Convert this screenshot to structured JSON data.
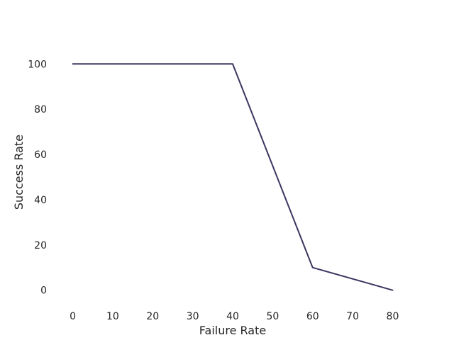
{
  "chart_data": {
    "type": "line",
    "title": "",
    "xlabel": "Failure Rate",
    "ylabel": "Success Rate",
    "x": [
      0,
      10,
      20,
      30,
      40,
      50,
      60,
      70,
      80
    ],
    "series": [
      {
        "values": [
          100,
          100,
          100,
          100,
          100,
          55,
          10,
          5,
          0
        ],
        "color": "#3b3660"
      }
    ],
    "xlim": [
      -4,
      84
    ],
    "ylim": [
      -7,
      117
    ],
    "xticks": [
      0,
      10,
      20,
      30,
      40,
      50,
      60,
      70,
      80
    ],
    "yticks": [
      0,
      20,
      40,
      60,
      80,
      100
    ],
    "grid": false,
    "legend": "none"
  }
}
